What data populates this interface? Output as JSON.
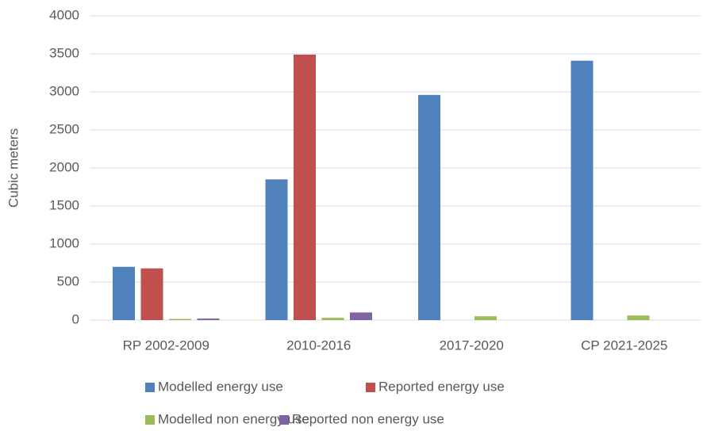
{
  "chart_data": {
    "type": "bar",
    "y_label": "Cubic meters",
    "categories": [
      "RP 2002-2009",
      "2010-2016",
      "2017-2020",
      "CP 2021-2025"
    ],
    "series": [
      {
        "name": "Modelled energy use",
        "color": "#4f81bd",
        "values": [
          700,
          1850,
          2960,
          3410
        ]
      },
      {
        "name": "Reported energy use",
        "color": "#c0504d",
        "values": [
          680,
          3490,
          null,
          null
        ]
      },
      {
        "name": "Modelled non energy use",
        "color": "#9bbb59",
        "values": [
          15,
          30,
          50,
          60
        ]
      },
      {
        "name": "Reported non energy use",
        "color": "#8064a2",
        "values": [
          20,
          100,
          null,
          null
        ]
      }
    ],
    "ylim": [
      0,
      4000
    ],
    "yticks": [
      0,
      500,
      1000,
      1500,
      2000,
      2500,
      3000,
      3500,
      4000
    ],
    "grid": true,
    "legend": "bottom"
  }
}
